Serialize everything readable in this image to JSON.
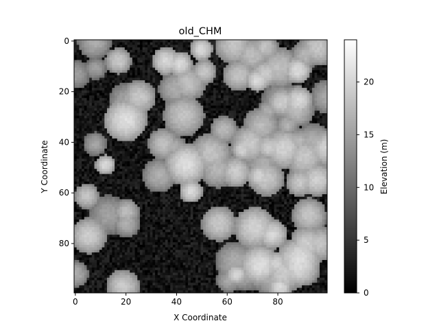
{
  "chart_data": {
    "type": "heatmap",
    "title": "old_CHM",
    "xlabel": "X Coordinate",
    "ylabel": "Y Coordinate",
    "colorbar_label": "Elevation (m)",
    "colormap": "gray",
    "xlim": [
      0,
      99
    ],
    "ylim": [
      99,
      0
    ],
    "y_axis_inverted": true,
    "xticks": [
      0,
      20,
      40,
      60,
      80
    ],
    "yticks": [
      0,
      20,
      40,
      60,
      80
    ],
    "colorbar_range": [
      0,
      24
    ],
    "colorbar_ticks": [
      0,
      5,
      10,
      15,
      20
    ],
    "grid_size": [
      100,
      100
    ],
    "grid": false
  }
}
